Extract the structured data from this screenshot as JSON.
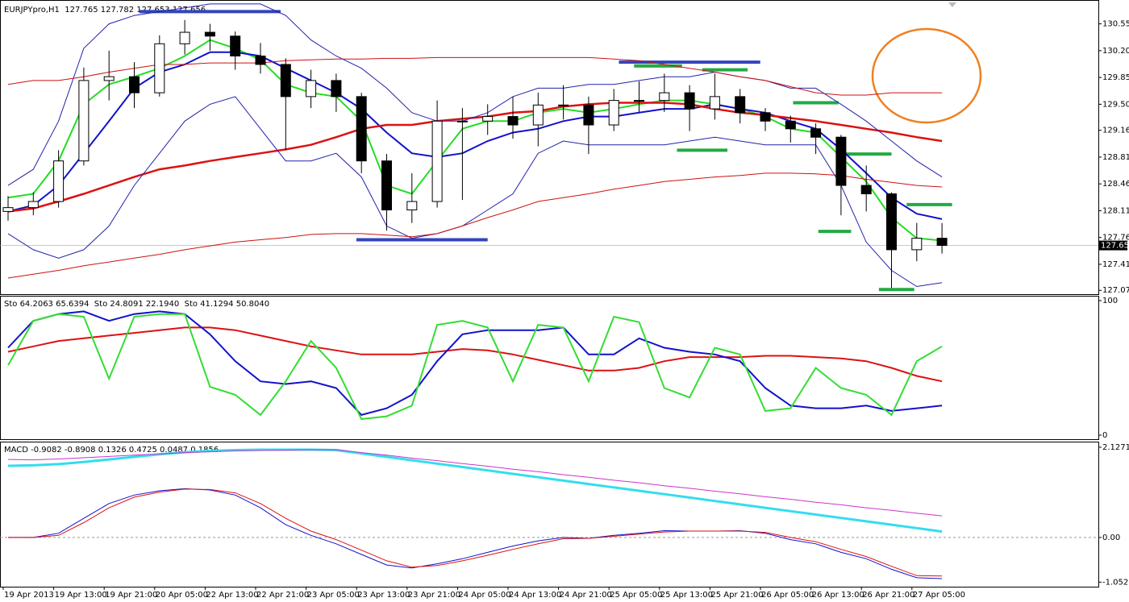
{
  "chart_data": [
    {
      "type": "candlestick",
      "title": "EURJPYpro,H1  127.765 127.782 127.653 127.656",
      "categories": [
        "19 Apr 2013",
        null,
        "19 Apr 13:00",
        null,
        "19 Apr 21:00",
        null,
        "20 Apr 05:00",
        null,
        "22 Apr 13:00",
        null,
        "22 Apr 21:00",
        null,
        "23 Apr 05:00",
        null,
        "23 Apr 13:00",
        null,
        "23 Apr 21:00",
        null,
        "24 Apr 05:00",
        null,
        "24 Apr 13:00",
        null,
        "24 Apr 21:00",
        null,
        "25 Apr 05:00",
        null,
        "25 Apr 13:00",
        null,
        "25 Apr 21:00",
        null,
        "26 Apr 05:00",
        null,
        "26 Apr 13:00",
        null,
        "26 Apr 21:00",
        null,
        "27 Apr 05:00",
        null
      ],
      "open": [
        128.1,
        128.15,
        128.23,
        128.76,
        129.81,
        129.86,
        129.65,
        130.29,
        130.44,
        130.39,
        130.13,
        130.02,
        129.6,
        129.81,
        129.6,
        128.76,
        128.12,
        128.23,
        129.28,
        129.28,
        129.34,
        129.23,
        129.49,
        129.49,
        129.23,
        129.55,
        129.55,
        129.65,
        129.44,
        129.6,
        129.39,
        129.28,
        129.18,
        129.07,
        128.44,
        128.33,
        127.6,
        127.75
      ],
      "high": [
        128.3,
        128.35,
        128.9,
        129.98,
        130.2,
        130.05,
        130.4,
        130.6,
        130.55,
        130.45,
        130.3,
        130.1,
        129.95,
        129.9,
        129.65,
        128.85,
        128.6,
        129.55,
        129.45,
        129.5,
        129.6,
        129.65,
        129.75,
        129.6,
        129.7,
        129.8,
        129.9,
        129.75,
        129.9,
        129.7,
        129.45,
        129.35,
        129.25,
        129.1,
        128.7,
        128.35,
        127.95,
        127.95
      ],
      "low": [
        127.98,
        128.05,
        128.15,
        128.7,
        129.55,
        129.45,
        129.6,
        130.15,
        130.2,
        129.95,
        129.9,
        128.9,
        129.45,
        129.4,
        128.6,
        127.85,
        127.95,
        128.15,
        128.25,
        129.1,
        129.05,
        128.95,
        129.3,
        128.85,
        129.15,
        129.4,
        129.4,
        129.15,
        129.3,
        129.25,
        129.15,
        129.0,
        128.85,
        128.05,
        128.1,
        127.1,
        127.45,
        127.55
      ],
      "close": [
        128.15,
        128.23,
        128.76,
        129.81,
        129.86,
        129.65,
        130.29,
        130.44,
        130.39,
        130.13,
        130.02,
        129.6,
        129.81,
        129.6,
        128.76,
        128.12,
        128.23,
        129.28,
        129.28,
        129.34,
        129.23,
        129.49,
        129.49,
        129.23,
        129.55,
        129.55,
        129.65,
        129.44,
        129.6,
        129.39,
        129.28,
        129.18,
        129.07,
        128.44,
        128.33,
        127.6,
        127.75,
        127.656
      ],
      "up_color": "#ffffff",
      "down_color": "#000000",
      "series": [
        {
          "color": "#22dd22",
          "values": [
            128.28,
            128.33,
            128.76,
            129.5,
            129.76,
            129.86,
            129.97,
            130.13,
            130.34,
            130.23,
            130.08,
            129.76,
            129.65,
            129.6,
            129.28,
            128.44,
            128.33,
            128.76,
            129.18,
            129.28,
            129.28,
            129.39,
            129.44,
            129.39,
            129.44,
            129.5,
            129.55,
            129.55,
            129.5,
            129.44,
            129.34,
            129.18,
            129.13,
            128.81,
            128.49,
            128.02,
            127.75,
            127.72
          ]
        },
        {
          "color": "#1111cc",
          "values": [
            128.1,
            128.18,
            128.44,
            128.86,
            129.28,
            129.71,
            129.92,
            130.02,
            130.18,
            130.18,
            130.13,
            129.97,
            129.81,
            129.65,
            129.44,
            129.13,
            128.86,
            128.81,
            128.86,
            129.02,
            129.13,
            129.18,
            129.28,
            129.34,
            129.34,
            129.39,
            129.44,
            129.44,
            129.5,
            129.44,
            129.39,
            129.28,
            129.18,
            128.91,
            128.6,
            128.28,
            128.07,
            128.0
          ]
        },
        {
          "color": "#dd1111",
          "values": [
            128.1,
            128.14,
            128.23,
            128.33,
            128.44,
            128.55,
            128.65,
            128.7,
            128.76,
            128.81,
            128.86,
            128.91,
            128.97,
            129.07,
            129.18,
            129.23,
            129.23,
            129.28,
            129.31,
            129.34,
            129.39,
            129.41,
            129.47,
            129.5,
            129.52,
            129.52,
            129.52,
            129.5,
            129.44,
            129.39,
            129.36,
            129.32,
            129.28,
            129.23,
            129.18,
            129.13,
            129.07,
            129.02
          ]
        },
        {
          "color": "#2222aa",
          "values": [
            128.44,
            128.65,
            129.28,
            130.23,
            130.55,
            130.66,
            130.71,
            130.76,
            130.81,
            130.81,
            130.81,
            130.66,
            130.34,
            130.13,
            129.97,
            129.71,
            129.39,
            129.28,
            129.28,
            129.39,
            129.6,
            129.71,
            129.71,
            129.76,
            129.76,
            129.81,
            129.86,
            129.86,
            129.92,
            129.86,
            129.81,
            129.71,
            129.71,
            129.5,
            129.28,
            129.02,
            128.76,
            128.55
          ]
        },
        {
          "color": "#2222aa",
          "values": [
            127.81,
            127.6,
            127.49,
            127.6,
            127.91,
            128.44,
            128.86,
            129.28,
            129.5,
            129.6,
            129.18,
            128.76,
            128.76,
            128.86,
            128.55,
            127.91,
            127.75,
            127.81,
            127.91,
            128.12,
            128.33,
            128.86,
            129.02,
            128.97,
            128.97,
            128.97,
            128.97,
            129.02,
            129.07,
            129.02,
            128.97,
            128.97,
            128.97,
            128.44,
            127.7,
            127.33,
            127.12,
            127.17
          ]
        },
        {
          "color": "#cc1111",
          "values": [
            129.76,
            129.81,
            129.81,
            129.86,
            129.92,
            129.97,
            130.02,
            130.02,
            130.04,
            130.04,
            130.04,
            130.07,
            130.08,
            130.09,
            130.09,
            130.1,
            130.1,
            130.11,
            130.11,
            130.11,
            130.11,
            130.11,
            130.11,
            130.11,
            130.09,
            130.07,
            130.02,
            129.97,
            129.92,
            129.86,
            129.81,
            129.73,
            129.65,
            129.62,
            129.62,
            129.65,
            129.65,
            129.65
          ]
        },
        {
          "color": "#cc1111",
          "values": [
            127.23,
            127.28,
            127.33,
            127.39,
            127.44,
            127.49,
            127.54,
            127.6,
            127.65,
            127.7,
            127.73,
            127.76,
            127.8,
            127.81,
            127.81,
            127.79,
            127.77,
            127.81,
            127.91,
            128.02,
            128.12,
            128.23,
            128.28,
            128.33,
            128.39,
            128.44,
            128.49,
            128.52,
            128.55,
            128.57,
            128.6,
            128.6,
            128.59,
            128.57,
            128.52,
            128.48,
            128.44,
            128.42
          ]
        }
      ],
      "levels": [
        {
          "color": "#3344bb",
          "value": 130.71,
          "x": [
            5.2,
            10.8
          ]
        },
        {
          "color": "#3344bb",
          "value": 130.05,
          "x": [
            24.2,
            29.8
          ]
        },
        {
          "color": "#3344bb",
          "value": 127.73,
          "x": [
            13.8,
            19.0
          ]
        },
        {
          "color": "#22aa44",
          "value": 130.0,
          "x": [
            24.8,
            26.7
          ]
        },
        {
          "color": "#22aa44",
          "value": 129.95,
          "x": [
            27.5,
            29.3
          ]
        },
        {
          "color": "#22aa44",
          "value": 129.52,
          "x": [
            31.1,
            32.9
          ]
        },
        {
          "color": "#22aa44",
          "value": 128.9,
          "x": [
            26.5,
            28.5
          ]
        },
        {
          "color": "#22aa44",
          "value": 128.85,
          "x": [
            33.2,
            35.0
          ]
        },
        {
          "color": "#22aa44",
          "value": 128.19,
          "x": [
            35.6,
            37.4
          ]
        },
        {
          "color": "#22aa44",
          "value": 127.84,
          "x": [
            32.1,
            33.4
          ]
        },
        {
          "color": "#22aa44",
          "value": 127.08,
          "x": [
            34.5,
            35.9
          ]
        }
      ],
      "last_price": 127.656,
      "ylim": [
        127.02,
        130.83
      ],
      "yticks": [
        {
          "value": 130.55,
          "label": "130.550"
        },
        {
          "value": 130.2,
          "label": "130.200"
        },
        {
          "value": 129.85,
          "label": "129.850"
        },
        {
          "value": 129.5,
          "label": "129.500"
        },
        {
          "value": 129.16,
          "label": "129.160"
        },
        {
          "value": 128.81,
          "label": "128.810"
        },
        {
          "value": 128.46,
          "label": "128.460"
        },
        {
          "value": 128.11,
          "label": "128.110"
        },
        {
          "value": 127.76,
          "label": "127.760"
        },
        {
          "value": 127.41,
          "label": "127.410"
        },
        {
          "value": 127.07,
          "label": "127.070"
        }
      ]
    },
    {
      "type": "line",
      "title": "Sto 64.2063 65.6394  Sto 24.8091 22.1940  Sto 41.1294 50.8040",
      "series": [
        {
          "color": "#dd1111",
          "values": [
            62,
            66,
            70,
            72,
            74,
            76,
            78,
            80,
            80,
            78,
            74,
            70,
            66,
            63,
            60,
            60,
            60,
            62,
            64,
            63,
            60,
            56,
            52,
            48,
            48,
            50,
            55,
            58,
            58,
            58,
            59,
            59,
            58,
            57,
            55,
            50,
            44,
            40
          ]
        },
        {
          "color": "#1111cc",
          "values": [
            65,
            85,
            90,
            92,
            85,
            90,
            92,
            90,
            75,
            55,
            40,
            38,
            40,
            35,
            15,
            20,
            30,
            55,
            75,
            78,
            78,
            78,
            80,
            60,
            60,
            72,
            65,
            62,
            60,
            55,
            35,
            22,
            20,
            20,
            22,
            18,
            20,
            22
          ]
        },
        {
          "color": "#33dd33",
          "values": [
            52,
            85,
            90,
            88,
            42,
            88,
            90,
            90,
            36,
            30,
            15,
            40,
            70,
            50,
            12,
            14,
            22,
            82,
            85,
            80,
            40,
            82,
            80,
            40,
            88,
            84,
            35,
            28,
            65,
            60,
            18,
            20,
            50,
            35,
            30,
            15,
            55,
            66
          ]
        }
      ],
      "ylim": [
        -3,
        103
      ],
      "yticks": [
        100,
        0
      ]
    },
    {
      "type": "line",
      "title": "MACD -0.9082 -0.8908 0.1326 0.4725 0.0487 0.1856",
      "series": [
        {
          "color": "#33ddee",
          "values": [
            1.69,
            1.7,
            1.73,
            1.78,
            1.84,
            1.9,
            1.96,
            2.01,
            2.04,
            2.06,
            2.07,
            2.07,
            2.07,
            2.06,
            1.98,
            1.9,
            1.82,
            1.74,
            1.66,
            1.58,
            1.5,
            1.42,
            1.34,
            1.26,
            1.18,
            1.1,
            1.02,
            0.94,
            0.86,
            0.78,
            0.7,
            0.62,
            0.54,
            0.46,
            0.38,
            0.3,
            0.22,
            0.14
          ]
        },
        {
          "color": "#cc33cc",
          "values": [
            1.84,
            1.83,
            1.85,
            1.88,
            1.91,
            1.94,
            1.97,
            2.0,
            2.02,
            2.04,
            2.05,
            2.06,
            2.07,
            2.07,
            2.0,
            1.94,
            1.87,
            1.81,
            1.74,
            1.68,
            1.61,
            1.55,
            1.48,
            1.42,
            1.35,
            1.29,
            1.22,
            1.16,
            1.09,
            1.03,
            0.96,
            0.9,
            0.83,
            0.77,
            0.7,
            0.64,
            0.57,
            0.51
          ]
        },
        {
          "color": "#1111cc",
          "values": [
            0,
            0,
            0.1,
            0.45,
            0.8,
            1.0,
            1.1,
            1.15,
            1.12,
            1.0,
            0.7,
            0.3,
            0.05,
            -0.15,
            -0.4,
            -0.65,
            -0.72,
            -0.62,
            -0.5,
            -0.35,
            -0.2,
            -0.08,
            0.0,
            -0.02,
            0.05,
            0.1,
            0.16,
            0.15,
            0.15,
            0.16,
            0.1,
            -0.05,
            -0.15,
            -0.35,
            -0.5,
            -0.75,
            -0.95,
            -0.97
          ]
        },
        {
          "color": "#dd1111",
          "values": [
            0,
            0,
            0.05,
            0.35,
            0.7,
            0.95,
            1.07,
            1.14,
            1.13,
            1.05,
            0.8,
            0.45,
            0.15,
            -0.05,
            -0.3,
            -0.55,
            -0.7,
            -0.66,
            -0.55,
            -0.42,
            -0.28,
            -0.15,
            -0.03,
            -0.02,
            0.03,
            0.08,
            0.13,
            0.15,
            0.15,
            0.15,
            0.12,
            0.0,
            -0.1,
            -0.28,
            -0.45,
            -0.68,
            -0.9,
            -0.91
          ]
        }
      ],
      "zero_line": true,
      "ylim": [
        -1.16,
        2.24
      ],
      "yticks": [
        2.1271,
        {
          "value": 0,
          "label": "0.00"
        },
        -1.0527
      ]
    }
  ]
}
